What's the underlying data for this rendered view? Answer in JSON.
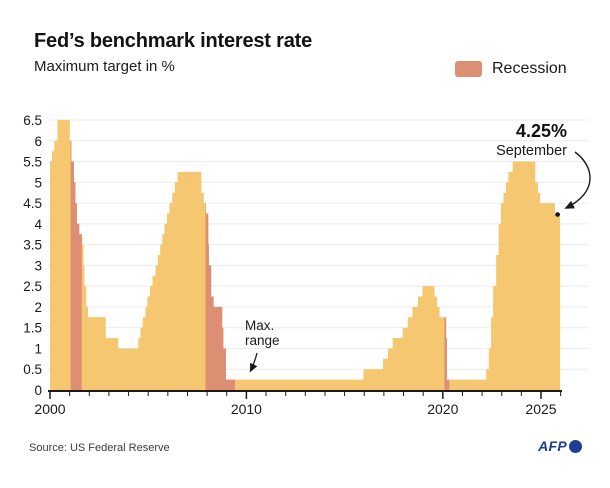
{
  "header": {
    "title": "Fed’s benchmark interest rate",
    "subtitle": "Maximum target in %"
  },
  "legend": {
    "label": "Recession",
    "color": "#dc8f72"
  },
  "annotations": {
    "latest_value": "4.25%",
    "latest_month": "September",
    "max_range_line1": "Max.",
    "max_range_line2": "range"
  },
  "footer": {
    "source": "Source: US Federal Reserve",
    "agency": "AFP"
  },
  "chart_data": {
    "type": "area",
    "title": "Fed’s benchmark interest rate",
    "ylabel": "Maximum target in %",
    "x_range": [
      2000,
      2026
    ],
    "y_range": [
      0,
      6.5
    ],
    "y_ticks": [
      0,
      0.5,
      1,
      1.5,
      2,
      2.5,
      3,
      3.5,
      4,
      4.5,
      5,
      5.5,
      6,
      6.5
    ],
    "x_tick_labels": [
      {
        "year": 2000,
        "label": "2000"
      },
      {
        "year": 2010,
        "label": "2010"
      },
      {
        "year": 2020,
        "label": "2020"
      },
      {
        "year": 2025,
        "label": "2025"
      }
    ],
    "grid_on": true,
    "legend_position": "top-right",
    "colors": {
      "area": "#f4c770",
      "recession": "#dc8f72",
      "grid": "#ececec",
      "axis": "#1a1a1a",
      "dot": "#111111"
    },
    "series_step_points": [
      [
        2000.0,
        5.5
      ],
      [
        2000.1,
        5.75
      ],
      [
        2000.22,
        6.0
      ],
      [
        2000.38,
        6.5
      ],
      [
        2001.01,
        6.0
      ],
      [
        2001.09,
        5.5
      ],
      [
        2001.22,
        5.0
      ],
      [
        2001.3,
        4.5
      ],
      [
        2001.37,
        4.0
      ],
      [
        2001.49,
        3.75
      ],
      [
        2001.64,
        3.5
      ],
      [
        2001.71,
        3.0
      ],
      [
        2001.75,
        2.5
      ],
      [
        2001.85,
        2.0
      ],
      [
        2001.94,
        1.75
      ],
      [
        2002.84,
        1.25
      ],
      [
        2003.48,
        1.0
      ],
      [
        2004.49,
        1.25
      ],
      [
        2004.61,
        1.5
      ],
      [
        2004.72,
        1.75
      ],
      [
        2004.86,
        2.0
      ],
      [
        2004.96,
        2.25
      ],
      [
        2005.09,
        2.5
      ],
      [
        2005.22,
        2.75
      ],
      [
        2005.37,
        3.0
      ],
      [
        2005.49,
        3.25
      ],
      [
        2005.61,
        3.5
      ],
      [
        2005.72,
        3.75
      ],
      [
        2005.83,
        4.0
      ],
      [
        2005.96,
        4.25
      ],
      [
        2006.08,
        4.5
      ],
      [
        2006.22,
        4.75
      ],
      [
        2006.36,
        5.0
      ],
      [
        2006.49,
        5.25
      ],
      [
        2007.71,
        4.75
      ],
      [
        2007.83,
        4.5
      ],
      [
        2007.94,
        4.25
      ],
      [
        2008.06,
        3.5
      ],
      [
        2008.09,
        3.0
      ],
      [
        2008.21,
        2.25
      ],
      [
        2008.33,
        2.0
      ],
      [
        2008.77,
        1.5
      ],
      [
        2008.83,
        1.0
      ],
      [
        2008.96,
        0.25
      ],
      [
        2015.96,
        0.5
      ],
      [
        2016.96,
        0.75
      ],
      [
        2017.21,
        1.0
      ],
      [
        2017.45,
        1.25
      ],
      [
        2017.96,
        1.5
      ],
      [
        2018.22,
        1.75
      ],
      [
        2018.45,
        2.0
      ],
      [
        2018.73,
        2.25
      ],
      [
        2018.96,
        2.5
      ],
      [
        2019.58,
        2.25
      ],
      [
        2019.71,
        2.0
      ],
      [
        2019.83,
        1.75
      ],
      [
        2020.17,
        1.25
      ],
      [
        2020.21,
        0.25
      ],
      [
        2022.21,
        0.5
      ],
      [
        2022.34,
        1.0
      ],
      [
        2022.46,
        1.75
      ],
      [
        2022.56,
        2.5
      ],
      [
        2022.72,
        3.25
      ],
      [
        2022.84,
        4.0
      ],
      [
        2022.96,
        4.5
      ],
      [
        2023.09,
        4.75
      ],
      [
        2023.22,
        5.0
      ],
      [
        2023.34,
        5.25
      ],
      [
        2023.56,
        5.5
      ],
      [
        2024.71,
        5.0
      ],
      [
        2024.84,
        4.75
      ],
      [
        2024.96,
        4.5
      ],
      [
        2025.71,
        4.25
      ]
    ],
    "series_end_x": 2025.97,
    "end_dot_value": 4.25,
    "recessions": [
      [
        2001.05,
        2001.62
      ],
      [
        2007.92,
        2009.42
      ],
      [
        2020.08,
        2020.33
      ]
    ]
  }
}
